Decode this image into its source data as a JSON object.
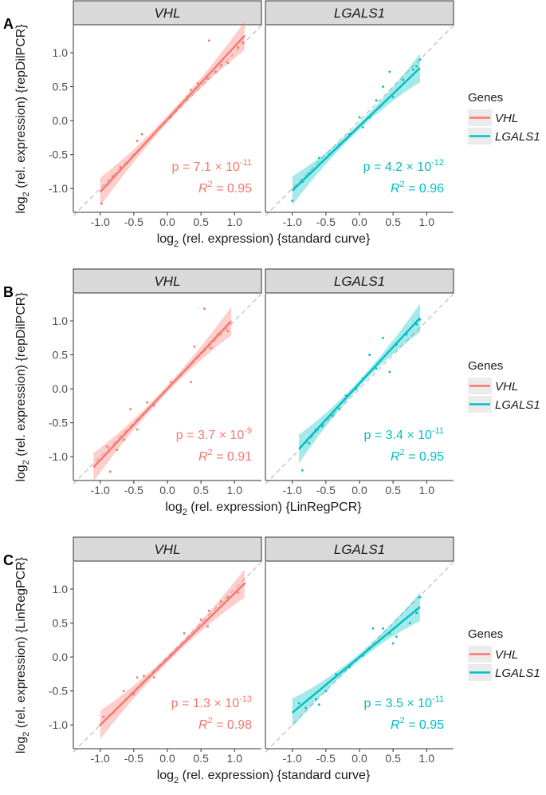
{
  "chart_data": {
    "type": "scatter",
    "legend": {
      "title": "Genes",
      "entries": [
        {
          "label": "VHL",
          "color": "#F8766D"
        },
        {
          "label": "LGALS1",
          "color": "#00BFC4"
        }
      ]
    },
    "x_ticks": [
      -1.0,
      -0.5,
      0.0,
      0.5,
      1.0
    ],
    "y_ticks": [
      -1.0,
      -0.5,
      0.0,
      0.5,
      1.0
    ],
    "x_tick_labels": [
      "-1.0",
      "-0.5",
      "0.0",
      "0.5",
      "1.0"
    ],
    "y_tick_labels": [
      "-1.0",
      "-0.5",
      "0.0",
      "0.5",
      "1.0"
    ],
    "rows": [
      {
        "letter": "A",
        "ylabel": "log2 (rel. expression) {repDilPCR}",
        "xlabel": "log2 (rel. expression) {standard curve}",
        "xlim": [
          -1.4,
          1.4
        ],
        "ylim": [
          -1.35,
          1.4
        ],
        "panels": [
          {
            "strip": "VHL",
            "color": "#F8766D",
            "p_mantissa": "7.1",
            "p_exponent": "-11",
            "r2": "0.95",
            "fit": {
              "x0": -1.0,
              "x1": 1.15,
              "slope": 1.07,
              "intercept": 0.02
            },
            "points": [
              [
                -0.98,
                -1.22
              ],
              [
                -0.9,
                -0.95
              ],
              [
                -0.82,
                -0.82
              ],
              [
                -0.7,
                -0.68
              ],
              [
                -0.5,
                -0.5
              ],
              [
                -0.45,
                -0.3
              ],
              [
                -0.38,
                -0.2
              ],
              [
                -0.25,
                -0.25
              ],
              [
                -0.12,
                -0.1
              ],
              [
                0.05,
                0.05
              ],
              [
                0.18,
                0.22
              ],
              [
                0.3,
                0.35
              ],
              [
                0.35,
                0.45
              ],
              [
                0.45,
                0.55
              ],
              [
                0.6,
                0.62
              ],
              [
                0.62,
                1.18
              ],
              [
                0.72,
                0.72
              ],
              [
                0.8,
                0.82
              ],
              [
                0.9,
                0.85
              ],
              [
                1.05,
                1.08
              ],
              [
                1.12,
                1.15
              ]
            ]
          },
          {
            "strip": "LGALS1",
            "color": "#00BFC4",
            "p_mantissa": "4.2",
            "p_exponent": "-12",
            "r2": "0.96",
            "fit": {
              "x0": -1.0,
              "x1": 0.9,
              "slope": 0.95,
              "intercept": -0.08
            },
            "points": [
              [
                -1.0,
                -1.18
              ],
              [
                -0.85,
                -0.9
              ],
              [
                -0.75,
                -0.78
              ],
              [
                -0.6,
                -0.55
              ],
              [
                -0.55,
                -0.6
              ],
              [
                -0.45,
                -0.5
              ],
              [
                -0.3,
                -0.35
              ],
              [
                -0.15,
                -0.2
              ],
              [
                0.0,
                0.05
              ],
              [
                0.05,
                -0.1
              ],
              [
                0.15,
                0.05
              ],
              [
                0.25,
                0.3
              ],
              [
                0.3,
                0.2
              ],
              [
                0.35,
                0.5
              ],
              [
                0.45,
                0.72
              ],
              [
                0.5,
                0.35
              ],
              [
                0.65,
                0.6
              ],
              [
                0.8,
                0.75
              ],
              [
                0.85,
                0.8
              ],
              [
                0.9,
                0.9
              ]
            ]
          }
        ]
      },
      {
        "letter": "B",
        "ylabel": "log2 (rel. expression) {repDilPCR}",
        "xlabel": "log2 (rel. expression) {LinRegPCR}",
        "xlim": [
          -1.4,
          1.4
        ],
        "ylim": [
          -1.35,
          1.4
        ],
        "panels": [
          {
            "strip": "VHL",
            "color": "#F8766D",
            "p_mantissa": "3.7",
            "p_exponent": "-9",
            "r2": "0.91",
            "fit": {
              "x0": -1.1,
              "x1": 0.95,
              "slope": 1.05,
              "intercept": 0.0
            },
            "points": [
              [
                -0.9,
                -0.85
              ],
              [
                -0.85,
                -1.22
              ],
              [
                -0.75,
                -0.9
              ],
              [
                -0.65,
                -0.75
              ],
              [
                -0.55,
                -0.3
              ],
              [
                -0.45,
                -0.6
              ],
              [
                -0.3,
                -0.2
              ],
              [
                -0.2,
                -0.25
              ],
              [
                -0.05,
                -0.05
              ],
              [
                0.05,
                0.1
              ],
              [
                0.2,
                0.2
              ],
              [
                0.35,
                0.1
              ],
              [
                0.4,
                0.62
              ],
              [
                0.5,
                0.52
              ],
              [
                0.55,
                1.18
              ],
              [
                0.65,
                0.6
              ],
              [
                0.75,
                0.8
              ],
              [
                0.9,
                0.85
              ]
            ]
          },
          {
            "strip": "LGALS1",
            "color": "#00BFC4",
            "p_mantissa": "3.4",
            "p_exponent": "-11",
            "r2": "0.95",
            "fit": {
              "x0": -0.9,
              "x1": 0.9,
              "slope": 1.07,
              "intercept": 0.08
            },
            "points": [
              [
                -0.85,
                -1.2
              ],
              [
                -0.75,
                -0.8
              ],
              [
                -0.65,
                -0.6
              ],
              [
                -0.55,
                -0.55
              ],
              [
                -0.4,
                -0.4
              ],
              [
                -0.3,
                -0.3
              ],
              [
                -0.2,
                -0.1
              ],
              [
                -0.05,
                0.0
              ],
              [
                0.05,
                0.15
              ],
              [
                0.15,
                0.5
              ],
              [
                0.25,
                0.3
              ],
              [
                0.35,
                0.75
              ],
              [
                0.45,
                0.25
              ],
              [
                0.55,
                0.65
              ],
              [
                0.7,
                0.8
              ],
              [
                0.85,
                0.95
              ],
              [
                0.9,
                1.02
              ]
            ]
          }
        ]
      },
      {
        "letter": "C",
        "ylabel": "log2 (rel. expression) {LinRegPCR}",
        "xlabel": "log2 (rel. expression) {standard curve}",
        "xlim": [
          -1.4,
          1.4
        ],
        "ylim": [
          -1.35,
          1.4
        ],
        "panels": [
          {
            "strip": "VHL",
            "color": "#F8766D",
            "p_mantissa": "1.3",
            "p_exponent": "-13",
            "r2": "0.98",
            "fit": {
              "x0": -1.0,
              "x1": 1.15,
              "slope": 0.97,
              "intercept": -0.03
            },
            "points": [
              [
                -1.0,
                -1.0
              ],
              [
                -0.95,
                -0.88
              ],
              [
                -0.8,
                -0.82
              ],
              [
                -0.65,
                -0.5
              ],
              [
                -0.5,
                -0.55
              ],
              [
                -0.45,
                -0.3
              ],
              [
                -0.35,
                -0.28
              ],
              [
                -0.2,
                -0.3
              ],
              [
                0.05,
                0.02
              ],
              [
                0.25,
                0.35
              ],
              [
                0.5,
                0.55
              ],
              [
                0.6,
                0.45
              ],
              [
                0.62,
                0.68
              ],
              [
                0.8,
                0.82
              ],
              [
                0.9,
                0.88
              ],
              [
                1.05,
                0.95
              ],
              [
                1.15,
                1.08
              ]
            ]
          },
          {
            "strip": "LGALS1",
            "color": "#00BFC4",
            "p_mantissa": "3.5",
            "p_exponent": "-11",
            "r2": "0.95",
            "fit": {
              "x0": -1.0,
              "x1": 0.9,
              "slope": 0.82,
              "intercept": 0.0
            },
            "points": [
              [
                -0.9,
                -0.68
              ],
              [
                -0.8,
                -0.75
              ],
              [
                -0.65,
                -0.62
              ],
              [
                -0.6,
                -0.7
              ],
              [
                -0.5,
                -0.5
              ],
              [
                -0.35,
                -0.25
              ],
              [
                -0.15,
                -0.15
              ],
              [
                -0.05,
                -0.05
              ],
              [
                0.05,
                0.02
              ],
              [
                0.2,
                0.42
              ],
              [
                0.35,
                0.42
              ],
              [
                0.45,
                0.35
              ],
              [
                0.5,
                0.2
              ],
              [
                0.55,
                0.3
              ],
              [
                0.75,
                0.5
              ],
              [
                0.85,
                0.65
              ],
              [
                0.9,
                0.88
              ]
            ]
          }
        ]
      }
    ]
  }
}
